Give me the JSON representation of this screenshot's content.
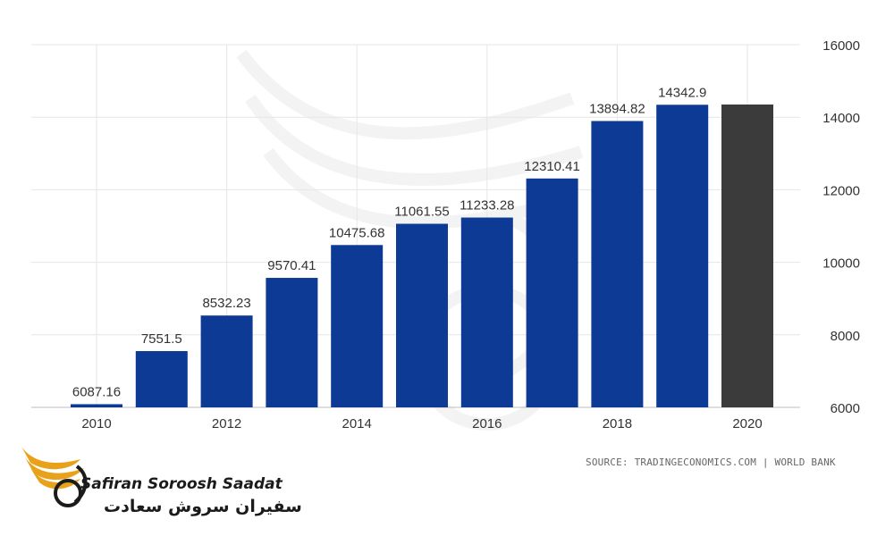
{
  "chart_data": {
    "type": "bar",
    "categories": [
      "2010",
      "2011",
      "2012",
      "2013",
      "2014",
      "2015",
      "2016",
      "2017",
      "2018",
      "2019",
      "2020"
    ],
    "values": [
      6087.16,
      7551.5,
      8532.23,
      9570.41,
      10475.68,
      11061.55,
      11233.28,
      12310.41,
      13894.82,
      14342.9,
      14350
    ],
    "data_labels": [
      "6087.16",
      "7551.5",
      "8532.23",
      "9570.41",
      "10475.68",
      "11061.55",
      "11233.28",
      "12310.41",
      "13894.82",
      "14342.9",
      ""
    ],
    "x_tick_labels": [
      "2010",
      "",
      "2012",
      "",
      "2014",
      "",
      "2016",
      "",
      "2018",
      "",
      "2020"
    ],
    "y_ticks": [
      6000,
      8000,
      10000,
      12000,
      14000,
      16000
    ],
    "ylim": [
      6000,
      16000
    ],
    "colors": {
      "bar": "#0d3a94",
      "forecast_bar": "#3b3b3b",
      "grid": "#e6e6e6",
      "label": "#333333"
    },
    "forecast_indices": [
      10
    ],
    "grid": true,
    "y_axis_position": "right",
    "source": "SOURCE: TRADINGECONOMICS.COM | WORLD BANK"
  },
  "logo": {
    "name": "Safiran Soroosh Saadat",
    "name_fa": "سفیران سروش سعادت",
    "accent": "#e8a11a"
  }
}
